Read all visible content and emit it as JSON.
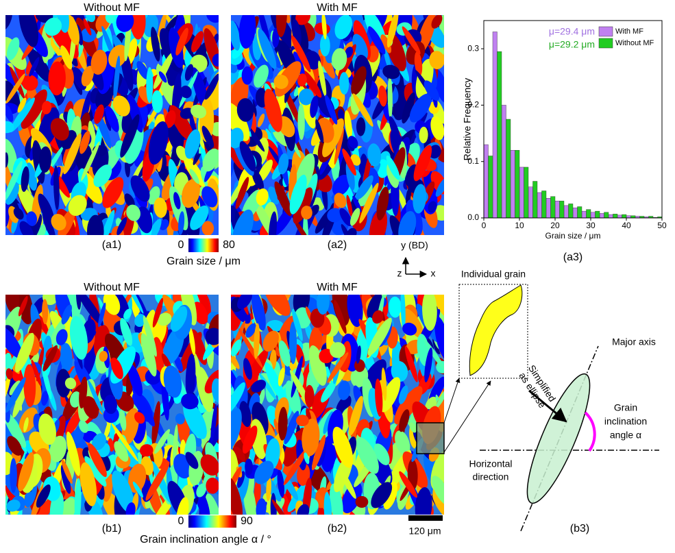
{
  "panels": {
    "a1": {
      "title": "Without MF",
      "label": "(a1)"
    },
    "a2": {
      "title": "With MF",
      "label": "(a2)"
    },
    "b1": {
      "title": "Without MF",
      "label": "(b1)"
    },
    "b2": {
      "title": "With MF",
      "label": "(b2)"
    }
  },
  "colorbar_size": {
    "ticks": [
      0,
      80
    ],
    "label": "Grain size / μm"
  },
  "colorbar_angle": {
    "ticks": [
      0,
      90
    ],
    "label": "Grain inclination angle α / °"
  },
  "axes_icon": {
    "y": "y (BD)",
    "z": "z",
    "x": "x"
  },
  "scale_bar": "120 μm",
  "b3": {
    "label": "(b3)",
    "individual_grain": "Individual grain",
    "simplified": [
      "Simplified",
      "as ellipse"
    ],
    "major_axis": "Major axis",
    "inclination": [
      "Grain",
      "inclination",
      "angle α"
    ],
    "horizontal": [
      "Horizontal",
      "direction"
    ]
  },
  "chart_data": {
    "type": "histogram",
    "panel_label": "(a3)",
    "xlabel": "Grain size / μm",
    "ylabel": "Relative Frequency",
    "bins": [
      0,
      2.5,
      5,
      7.5,
      10,
      12.5,
      15,
      17.5,
      20,
      22.5,
      25,
      27.5,
      30,
      32.5,
      35,
      37.5,
      40,
      42.5,
      45,
      47.5,
      50
    ],
    "series": [
      {
        "name": "With MF",
        "color": "#c080f0",
        "values": [
          0.13,
          0.33,
          0.2,
          0.12,
          0.09,
          0.055,
          0.045,
          0.035,
          0.03,
          0.022,
          0.018,
          0.012,
          0.01,
          0.008,
          0.006,
          0.005,
          0.004,
          0.003,
          0.002,
          0.001
        ]
      },
      {
        "name": "Without MF",
        "color": "#22cc22",
        "values": [
          0.11,
          0.295,
          0.175,
          0.12,
          0.09,
          0.065,
          0.048,
          0.038,
          0.03,
          0.025,
          0.02,
          0.015,
          0.012,
          0.01,
          0.007,
          0.006,
          0.004,
          0.003,
          0.003,
          0.002
        ]
      }
    ],
    "annotations": [
      {
        "text": "μ=29.4 μm",
        "color": "#a070e0"
      },
      {
        "text": "μ=29.2 μm",
        "color": "#22aa22"
      }
    ],
    "xlim": [
      0,
      50
    ],
    "xticks": [
      0,
      10,
      20,
      30,
      40,
      50
    ],
    "ylim": [
      0,
      0.35
    ],
    "yticks": [
      {
        "value": 0,
        "label": "0.0"
      },
      0.1,
      0.2,
      0.3
    ],
    "legend": "upper right"
  }
}
